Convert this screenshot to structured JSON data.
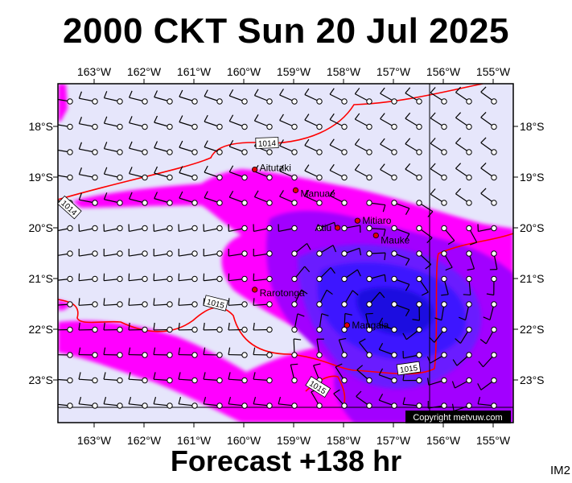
{
  "title": "2000 CKT Sun 20 Jul 2025",
  "footer": "Forecast +138 hr",
  "product_code": "IM2",
  "copyright": "Copyright metvuw.com",
  "map": {
    "lon_labels": [
      "163°W",
      "162°W",
      "161°W",
      "160°W",
      "159°W",
      "158°W",
      "157°W",
      "156°W",
      "155°W"
    ],
    "lat_labels": [
      "18°S",
      "19°S",
      "20°S",
      "21°S",
      "22°S",
      "23°S"
    ],
    "places": [
      {
        "name": "Aitutaki",
        "lon": -159.78,
        "lat": -18.85
      },
      {
        "name": "Manuae",
        "lon": -158.96,
        "lat": -19.26
      },
      {
        "name": "Mitiaro",
        "lon": -157.72,
        "lat": -19.86
      },
      {
        "name": "Atiu",
        "lon": -158.12,
        "lat": -20.0
      },
      {
        "name": "Mauke",
        "lon": -157.35,
        "lat": -20.15
      },
      {
        "name": "Rarotonga",
        "lon": -159.78,
        "lat": -21.22
      },
      {
        "name": "Mangaia",
        "lon": -157.93,
        "lat": -21.92
      }
    ],
    "isobar_labels": [
      "1014",
      "1014",
      "1015",
      "1015",
      "1015"
    ],
    "colors": {
      "background": "#e6e6fb",
      "rain_light": "#ff00ff",
      "rain_medium": "#a200ff",
      "rain_heavy": "#3c18ff",
      "rain_core": "#1a10e0",
      "isobar": "#ff0000"
    }
  }
}
